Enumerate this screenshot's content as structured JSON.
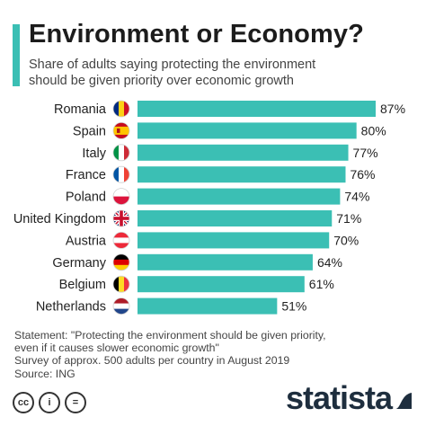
{
  "header": {
    "title": "Environment or Economy?",
    "subtitle_lines": [
      "Share of adults saying protecting the environment",
      "should be given priority over economic growth"
    ]
  },
  "colors": {
    "accent": "#3bbfb4",
    "bar": "#3bbfb4",
    "text": "#222222",
    "logo": "#1e2e3e"
  },
  "chart_data": {
    "type": "bar",
    "orientation": "horizontal",
    "categories": [
      "Romania",
      "Spain",
      "Italy",
      "France",
      "Poland",
      "United Kingdom",
      "Austria",
      "Germany",
      "Belgium",
      "Netherlands"
    ],
    "values": [
      87,
      80,
      77,
      76,
      74,
      71,
      70,
      64,
      61,
      51
    ],
    "value_labels": [
      "87%",
      "80%",
      "77%",
      "76%",
      "74%",
      "71%",
      "70%",
      "64%",
      "61%",
      "51%"
    ],
    "flags": [
      "romania-flag-icon",
      "spain-flag-icon",
      "italy-flag-icon",
      "france-flag-icon",
      "poland-flag-icon",
      "united-kingdom-flag-icon",
      "austria-flag-icon",
      "germany-flag-icon",
      "belgium-flag-icon",
      "netherlands-flag-icon"
    ],
    "xlim": [
      0,
      87
    ],
    "grid": false,
    "legend": "none"
  },
  "footer": {
    "notes": [
      "Statement: \"Protecting the environment should be given priority,",
      "even if it causes slower economic growth\"",
      "Survey of approx. 500 adults per country in August 2019",
      "Source: ING"
    ],
    "license_icons": [
      "cc-icon",
      "attribution-icon",
      "no-derivatives-icon"
    ],
    "license_glyphs": [
      "cc",
      "i",
      "="
    ],
    "brand": "statista"
  }
}
